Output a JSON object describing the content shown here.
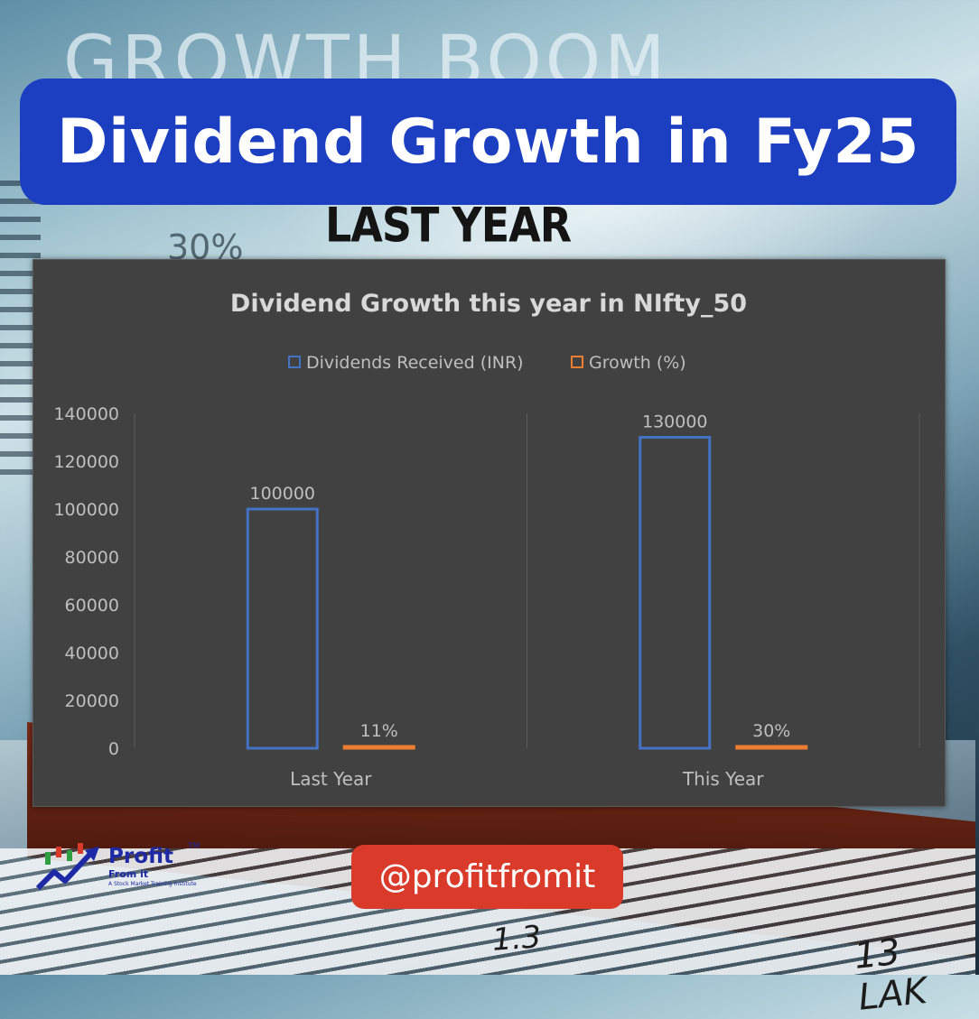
{
  "banner": {
    "title": "Dividend Growth in Fy25"
  },
  "background_text": {
    "headline": "GROWTH BOOM",
    "subline": "LAST YEAR",
    "percent": "30%",
    "number_right": "13 LAK",
    "number_mid": "1.3"
  },
  "handle": {
    "text": "@profitfromit"
  },
  "logo": {
    "name": "Profit",
    "sub": "From it",
    "tagline": "A Stock Market Training Institute",
    "trademark": "TM"
  },
  "colors": {
    "banner": "#1b3fc0",
    "handle": "#d93a2a",
    "panel": "#414141",
    "series_dividends": "#4472c4",
    "series_growth": "#ed7d31"
  },
  "chart_data": {
    "type": "bar",
    "title": "Dividend Growth this year in NIfty_50",
    "categories": [
      "Last Year",
      "This Year"
    ],
    "series": [
      {
        "name": "Dividends Received (INR)",
        "values": [
          100000,
          130000
        ],
        "labels": [
          "100000",
          "130000"
        ]
      },
      {
        "name": "Growth (%)",
        "values": [
          11,
          30
        ],
        "labels": [
          "11%",
          "30%"
        ]
      }
    ],
    "ylim": [
      0,
      140000
    ],
    "yticks": [
      0,
      20000,
      40000,
      60000,
      80000,
      100000,
      120000,
      140000
    ],
    "legend_position": "top",
    "grid": {
      "vertical": true
    }
  }
}
